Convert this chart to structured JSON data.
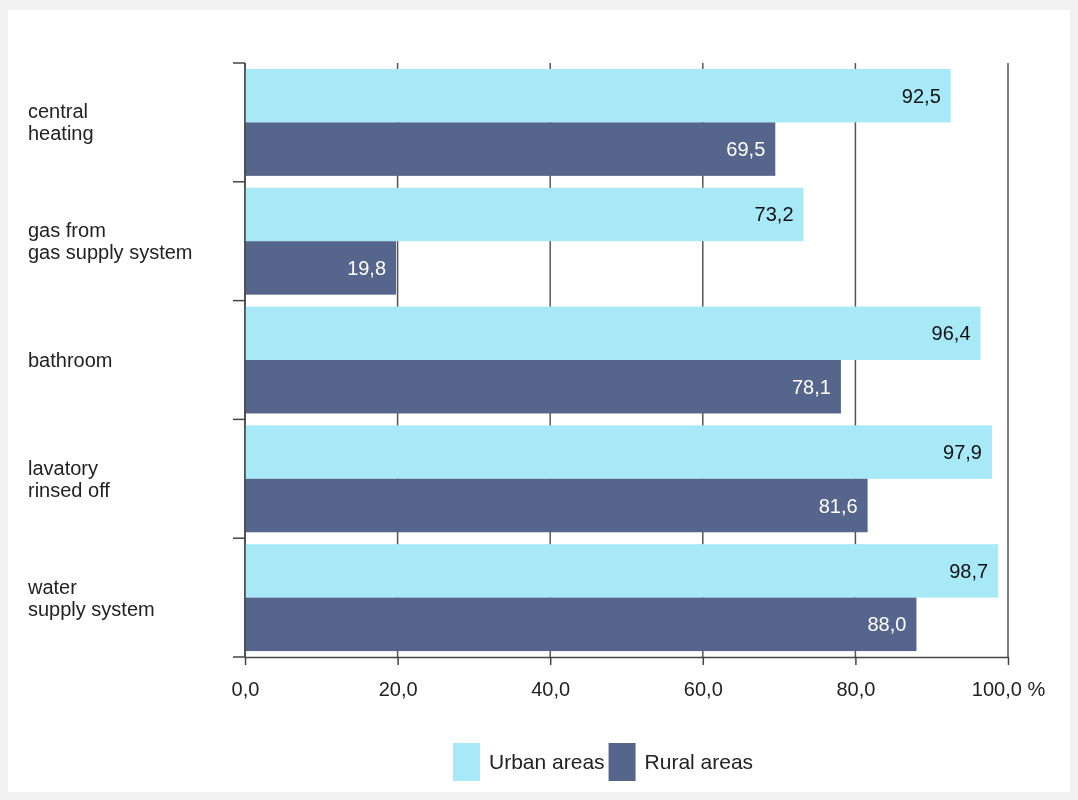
{
  "chart_data": {
    "type": "bar",
    "orientation": "horizontal",
    "categories": [
      "central\nheating",
      "gas from\ngas supply system",
      "bathroom",
      "lavatory\nrinsed off",
      "water\nsupply system"
    ],
    "series": [
      {
        "name": "Urban areas",
        "color": "#a8e9f8",
        "values": [
          92.5,
          73.2,
          96.4,
          97.9,
          98.7
        ],
        "value_labels": [
          "92,5",
          "73,2",
          "96,4",
          "97,9",
          "98,7"
        ]
      },
      {
        "name": "Rural areas",
        "color": "#56658b",
        "values": [
          69.5,
          19.8,
          78.1,
          81.6,
          88.0
        ],
        "value_labels": [
          "69,5",
          "19,8",
          "78,1",
          "81,6",
          "88,0"
        ]
      }
    ],
    "xlim": [
      0,
      100
    ],
    "xticks": [
      {
        "value": 0,
        "label": "0,0"
      },
      {
        "value": 20,
        "label": "20,0"
      },
      {
        "value": 40,
        "label": "40,0"
      },
      {
        "value": 60,
        "label": "60,0"
      },
      {
        "value": 80,
        "label": "80,0"
      },
      {
        "value": 100,
        "label": "100,0 %"
      }
    ],
    "grid": "x",
    "legend": "bottom"
  }
}
